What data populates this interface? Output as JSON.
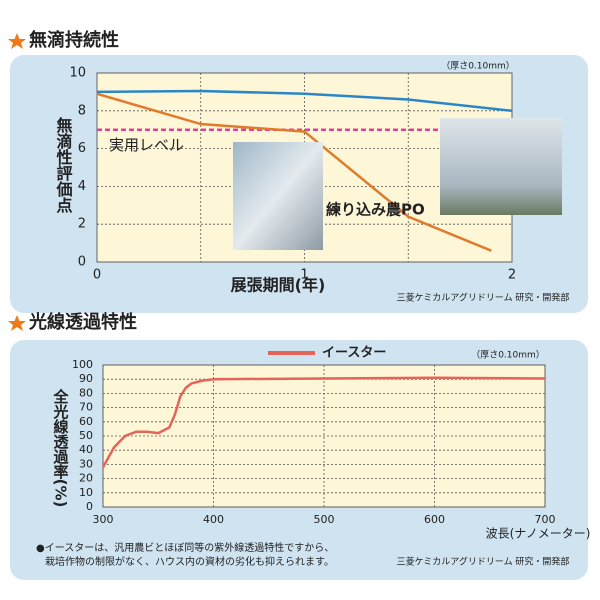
{
  "headings": [
    "無滴持続性",
    "光線透過特性"
  ],
  "chart_data": [
    {
      "type": "line",
      "y_label": "無滴性評価点",
      "x_label": "展張期間(年)",
      "note": "（厚さ0.10mm）",
      "source": "三菱ケミカルアグリドリーム 研究・開発部",
      "xlim": [
        0,
        2
      ],
      "xticks": [
        0,
        1,
        2
      ],
      "xgrid": [
        0.5,
        1,
        1.5
      ],
      "ylim": [
        0,
        10
      ],
      "yticks": [
        0,
        2,
        4,
        6,
        8,
        10
      ],
      "grid": true,
      "reference_lines": [
        {
          "value": 7,
          "label": "実用レベル",
          "color": "#e0409a"
        }
      ],
      "series": [
        {
          "color": "#2a86c8",
          "x": [
            0,
            0.5,
            1,
            1.5,
            2
          ],
          "values": [
            9,
            9.05,
            8.9,
            8.6,
            8.0
          ]
        },
        {
          "name": "練り込み農PO",
          "color": "#e07b2c",
          "x": [
            0,
            0.5,
            1,
            1.5,
            1.9
          ],
          "values": [
            8.9,
            7.3,
            6.9,
            2.4,
            0.6
          ]
        }
      ]
    },
    {
      "type": "line",
      "y_label": "全光線透過率(%)",
      "x_label": "波長(ナノメーター)",
      "note": "（厚さ0.10mm）",
      "source": "三菱ケミカルアグリドリーム 研究・開発部",
      "footnote": [
        "●イースターは、汎用農ビとほぼ同等の紫外線透過特性ですから、",
        "栽培作物の制限がなく、ハウス内の資材の劣化も抑えられます。"
      ],
      "xlim": [
        300,
        700
      ],
      "xticks": [
        300,
        400,
        500,
        600,
        700
      ],
      "ylim": [
        0,
        100
      ],
      "yticks": [
        0,
        10,
        20,
        30,
        40,
        50,
        60,
        70,
        80,
        90,
        100
      ],
      "grid": true,
      "series": [
        {
          "name": "イースター",
          "color": "#e5645a",
          "x": [
            300,
            310,
            320,
            330,
            340,
            350,
            360,
            365,
            370,
            375,
            380,
            390,
            400,
            500,
            600,
            700
          ],
          "values": [
            28,
            42,
            50,
            53,
            53,
            52,
            56,
            65,
            78,
            84,
            87,
            89,
            90,
            90.5,
            91,
            90.5
          ]
        }
      ]
    }
  ]
}
